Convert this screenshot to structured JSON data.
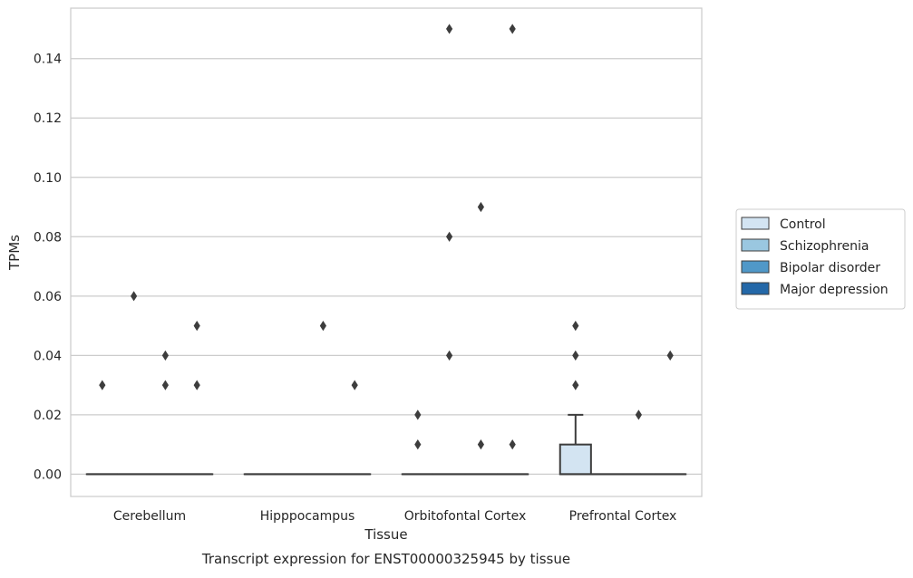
{
  "chart_data": {
    "type": "box",
    "title": "",
    "caption": "Transcript expression for ENST00000325945 by tissue",
    "xlabel": "Tissue",
    "ylabel": "TPMs",
    "ylim": [
      -0.0075,
      0.157
    ],
    "yticks": [
      0.0,
      0.02,
      0.04,
      0.06,
      0.08,
      0.1,
      0.12,
      0.14
    ],
    "ytick_labels": [
      "0.00",
      "0.02",
      "0.04",
      "0.06",
      "0.08",
      "0.10",
      "0.12",
      "0.14"
    ],
    "grid": "horizontal",
    "legend_position": "right",
    "categories": [
      "Cerebellum",
      "Hipppocampus",
      "Orbitofontal Cortex",
      "Prefrontal Cortex"
    ],
    "series": [
      {
        "name": "Control",
        "color": "#d3e4f2",
        "boxes": [
          {
            "q1": 0,
            "median": 0,
            "q3": 0,
            "whisker_low": 0,
            "whisker_high": 0,
            "outliers": [
              0.03
            ]
          },
          {
            "q1": 0,
            "median": 0,
            "q3": 0,
            "whisker_low": 0,
            "whisker_high": 0,
            "outliers": []
          },
          {
            "q1": 0,
            "median": 0,
            "q3": 0,
            "whisker_low": 0,
            "whisker_high": 0,
            "outliers": [
              0.02,
              0.01
            ]
          },
          {
            "q1": 0,
            "median": 0,
            "q3": 0.01,
            "whisker_low": 0,
            "whisker_high": 0.02,
            "outliers": [
              0.05,
              0.04,
              0.03
            ]
          }
        ]
      },
      {
        "name": "Schizophrenia",
        "color": "#9ac7e0",
        "boxes": [
          {
            "q1": 0,
            "median": 0,
            "q3": 0,
            "whisker_low": 0,
            "whisker_high": 0,
            "outliers": [
              0.06
            ]
          },
          {
            "q1": 0,
            "median": 0,
            "q3": 0,
            "whisker_low": 0,
            "whisker_high": 0,
            "outliers": []
          },
          {
            "q1": 0,
            "median": 0,
            "q3": 0,
            "whisker_low": 0,
            "whisker_high": 0,
            "outliers": [
              0.15,
              0.08,
              0.04
            ]
          },
          {
            "q1": 0,
            "median": 0,
            "q3": 0,
            "whisker_low": 0,
            "whisker_high": 0,
            "outliers": []
          }
        ]
      },
      {
        "name": "Bipolar disorder",
        "color": "#5098c8",
        "boxes": [
          {
            "q1": 0,
            "median": 0,
            "q3": 0,
            "whisker_low": 0,
            "whisker_high": 0,
            "outliers": [
              0.04,
              0.03
            ]
          },
          {
            "q1": 0,
            "median": 0,
            "q3": 0,
            "whisker_low": 0,
            "whisker_high": 0,
            "outliers": [
              0.05
            ]
          },
          {
            "q1": 0,
            "median": 0,
            "q3": 0,
            "whisker_low": 0,
            "whisker_high": 0,
            "outliers": [
              0.09,
              0.01
            ]
          },
          {
            "q1": 0,
            "median": 0,
            "q3": 0,
            "whisker_low": 0,
            "whisker_high": 0,
            "outliers": [
              0.02
            ]
          }
        ]
      },
      {
        "name": "Major depression",
        "color": "#2468a8",
        "boxes": [
          {
            "q1": 0,
            "median": 0,
            "q3": 0,
            "whisker_low": 0,
            "whisker_high": 0,
            "outliers": [
              0.05,
              0.03
            ]
          },
          {
            "q1": 0,
            "median": 0,
            "q3": 0,
            "whisker_low": 0,
            "whisker_high": 0,
            "outliers": [
              0.03
            ]
          },
          {
            "q1": 0,
            "median": 0,
            "q3": 0,
            "whisker_low": 0,
            "whisker_high": 0,
            "outliers": [
              0.15,
              0.01
            ]
          },
          {
            "q1": 0,
            "median": 0,
            "q3": 0,
            "whisker_low": 0,
            "whisker_high": 0,
            "outliers": [
              0.04
            ]
          }
        ]
      }
    ]
  }
}
